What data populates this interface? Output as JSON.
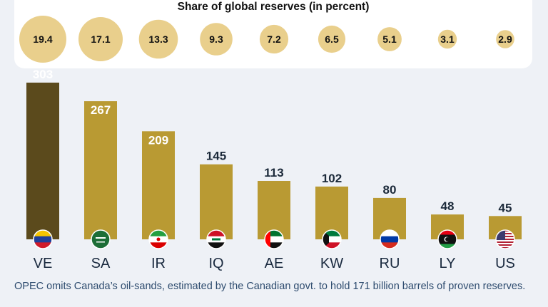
{
  "chart_data": {
    "type": "bar",
    "categories": [
      "VE",
      "SA",
      "IR",
      "IQ",
      "AE",
      "KW",
      "RU",
      "LY",
      "US"
    ],
    "values": [
      303,
      267,
      209,
      145,
      113,
      102,
      80,
      48,
      45
    ],
    "share_title": "Share of global reserves (in percent)",
    "shares": [
      "19.4",
      "17.1",
      "13.3",
      "9.3",
      "7.2",
      "6.5",
      "5.1",
      "3.1",
      "2.9"
    ],
    "share_values": [
      19.4,
      17.1,
      13.3,
      9.3,
      7.2,
      6.5,
      5.1,
      3.1,
      2.9
    ],
    "flag_icons": [
      "venezuela-flag-icon",
      "saudi-arabia-flag-icon",
      "iran-flag-icon",
      "iraq-flag-icon",
      "uae-flag-icon",
      "kuwait-flag-icon",
      "russia-flag-icon",
      "libya-flag-icon",
      "usa-flag-icon"
    ],
    "ylim": [
      0,
      303
    ],
    "grid": false,
    "colors": {
      "highlight_bar": "#5b4a1c",
      "bar": "#b99a33",
      "bubble": "#e9cf8c",
      "label": "#1c2a3a",
      "footnote": "#2d4b6e"
    }
  },
  "footnote": "OPEC omits Canada’s oil-sands, estimated by the Canadian govt. to hold 171 billion barrels of proven reserves."
}
